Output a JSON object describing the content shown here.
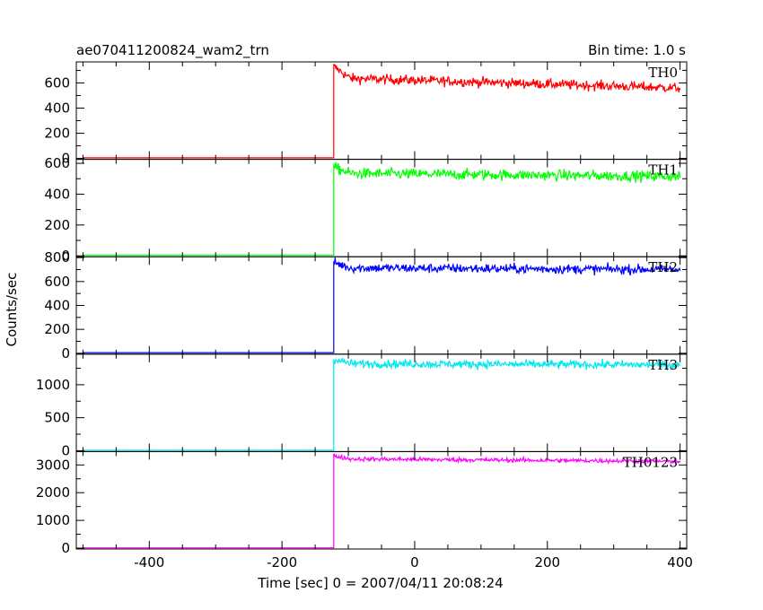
{
  "chart_data": {
    "type": "line",
    "title": "ae070411200824_wam2_trn",
    "bin_time_label": "Bin time: 1.0 s",
    "xlabel": "Time [sec] 0 = 2007/04/11 20:08:24",
    "ylabel": "Counts/sec",
    "xlim": [
      -510,
      410
    ],
    "x_ticks": [
      -400,
      -200,
      0,
      200,
      400
    ],
    "trigger_time": -122,
    "x_start": -500,
    "x_end": 400,
    "panels": [
      {
        "name": "TH0",
        "color": "#ff0000",
        "ylim": [
          0,
          760
        ],
        "y_ticks": [
          0,
          200,
          400,
          600
        ],
        "pre_level": 5,
        "peak": 730,
        "level_start": 640,
        "level_end": 560,
        "noise": 28
      },
      {
        "name": "TH1",
        "color": "#00ff00",
        "ylim": [
          0,
          620
        ],
        "y_ticks": [
          0,
          200,
          400,
          600
        ],
        "pre_level": 5,
        "peak": 575,
        "level_start": 535,
        "level_end": 515,
        "noise": 25
      },
      {
        "name": "TH2",
        "color": "#0000ff",
        "ylim": [
          0,
          800
        ],
        "y_ticks": [
          0,
          200,
          400,
          600,
          800
        ],
        "pre_level": 5,
        "peak": 760,
        "level_start": 715,
        "level_end": 700,
        "noise": 28
      },
      {
        "name": "TH3",
        "color": "#00e8ee",
        "ylim": [
          0,
          1450
        ],
        "y_ticks": [
          0,
          500,
          1000
        ],
        "pre_level": 5,
        "peak": 1390,
        "level_start": 1320,
        "level_end": 1300,
        "noise": 45
      },
      {
        "name": "TH0123",
        "color": "#ff00ff",
        "ylim": [
          0,
          3450
        ],
        "y_ticks": [
          0,
          1000,
          2000,
          3000
        ],
        "pre_level": 10,
        "peak": 3330,
        "level_start": 3220,
        "level_end": 3130,
        "noise": 55
      }
    ]
  }
}
